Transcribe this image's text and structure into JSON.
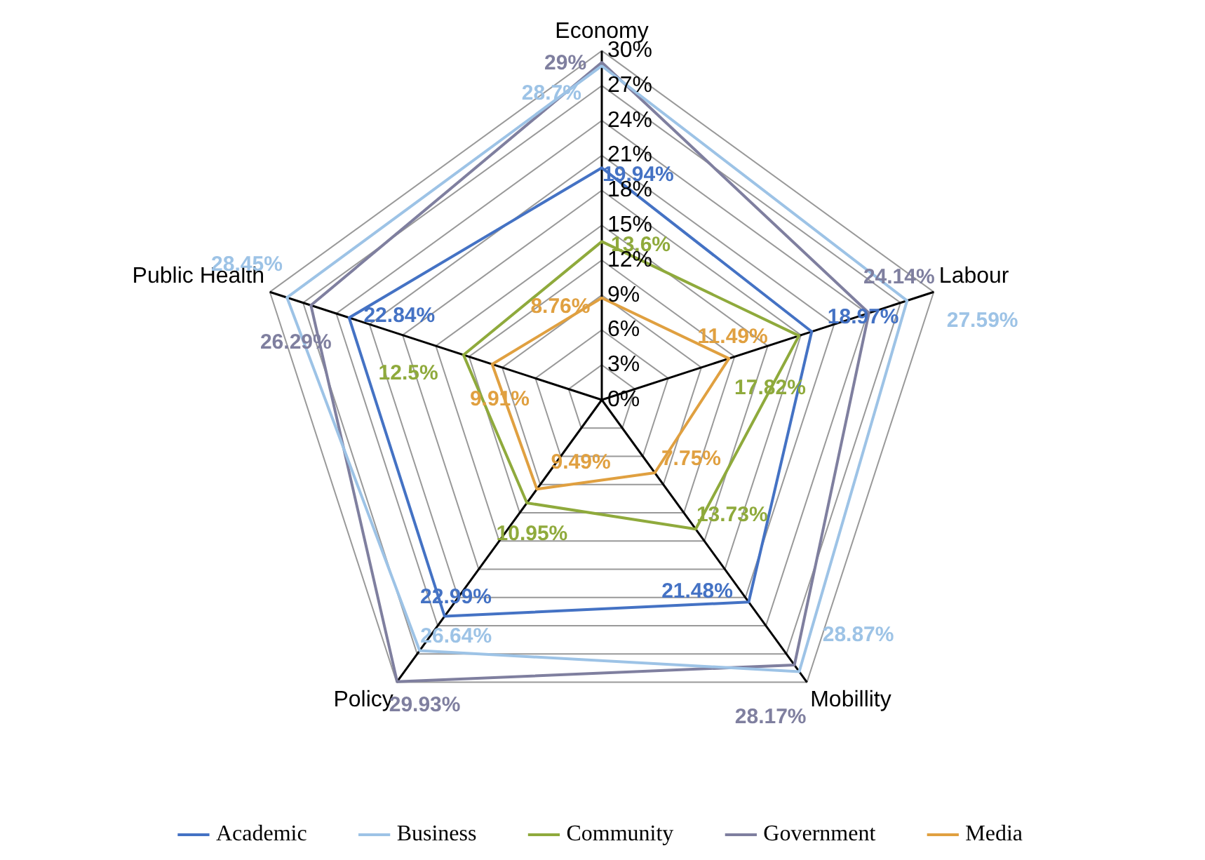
{
  "chart_data": {
    "type": "radar",
    "categories": [
      "Economy",
      "Labour",
      "Mobillity",
      "Policy",
      "Public Health"
    ],
    "series": [
      {
        "name": "Academic",
        "color": "#4472c4",
        "values": [
          19.94,
          18.97,
          21.48,
          22.99,
          22.84
        ],
        "value_labels": [
          "19.94%",
          "18.97%",
          "21.48%",
          "22.99%",
          "22.84%"
        ]
      },
      {
        "name": "Business",
        "color": "#9dc3e6",
        "values": [
          28.7,
          27.59,
          28.87,
          26.64,
          28.45
        ],
        "value_labels": [
          "28.7%",
          "27.59%",
          "28.87%",
          "26.64%",
          "28.45%"
        ]
      },
      {
        "name": "Community",
        "color": "#8faa3c",
        "values": [
          13.6,
          17.82,
          13.73,
          10.95,
          12.5
        ],
        "value_labels": [
          "13.6%",
          "17.82%",
          "13.73%",
          "10.95%",
          "12.5%"
        ]
      },
      {
        "name": "Government",
        "color": "#7f7f9f",
        "values": [
          29,
          24.14,
          28.17,
          29.93,
          26.29
        ],
        "value_labels": [
          "29%",
          "24.14%",
          "28.17%",
          "29.93%",
          "26.29%"
        ]
      },
      {
        "name": "Media",
        "color": "#e0a040",
        "values": [
          8.76,
          11.49,
          7.75,
          9.49,
          9.91
        ],
        "value_labels": [
          "8.76%",
          "11.49%",
          "7.75%",
          "9.49%",
          "9.91%"
        ]
      }
    ],
    "ylim": [
      0,
      30
    ],
    "yticks": [
      {
        "value": 0,
        "label": "0%"
      },
      {
        "value": 3,
        "label": "3%"
      },
      {
        "value": 6,
        "label": "6%"
      },
      {
        "value": 9,
        "label": "9%"
      },
      {
        "value": 12,
        "label": "12%"
      },
      {
        "value": 15,
        "label": "15%"
      },
      {
        "value": 18,
        "label": "18%"
      },
      {
        "value": 21,
        "label": "21%"
      },
      {
        "value": 24,
        "label": "24%"
      },
      {
        "value": 27,
        "label": "27%"
      },
      {
        "value": 30,
        "label": "30%"
      }
    ],
    "grid": true,
    "legend": "bottom"
  }
}
